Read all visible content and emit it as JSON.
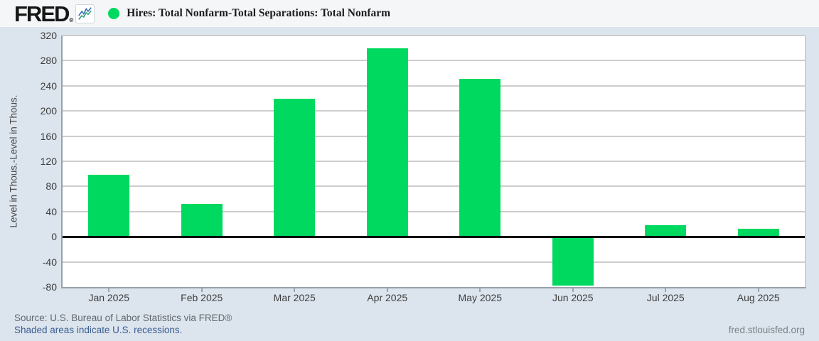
{
  "header": {
    "logo_text": "FRED",
    "logo_registered": "®",
    "title": "Hires: Total Nonfarm-Total Separations: Total Nonfarm"
  },
  "chart_data": {
    "type": "bar",
    "title": "Hires: Total Nonfarm-Total Separations: Total Nonfarm",
    "categories": [
      "Jan 2025",
      "Feb 2025",
      "Mar 2025",
      "Apr 2025",
      "May 2025",
      "Jun 2025",
      "Jul 2025",
      "Aug 2025"
    ],
    "values": [
      98,
      52,
      220,
      300,
      251,
      -78,
      18,
      13
    ],
    "ylabel": "Level in Thous.-Level in Thous.",
    "yticks": [
      320,
      280,
      240,
      200,
      160,
      120,
      80,
      40,
      0,
      -40,
      -80
    ],
    "ylim": [
      -80,
      320
    ],
    "grid": true,
    "zero_line": true,
    "legend_position": "top-left",
    "bar_color": "#00d95f"
  },
  "footer": {
    "source": "Source: U.S. Bureau of Labor Statistics via FRED®",
    "recession_note": "Shaded areas indicate U.S. recessions.",
    "site_link": "fred.stlouisfed.org"
  },
  "colors": {
    "bar_green": "#00d95f",
    "link_blue": "#3a5d92",
    "page_background": "#dce4ed",
    "header_background": "#f4f6f8"
  }
}
